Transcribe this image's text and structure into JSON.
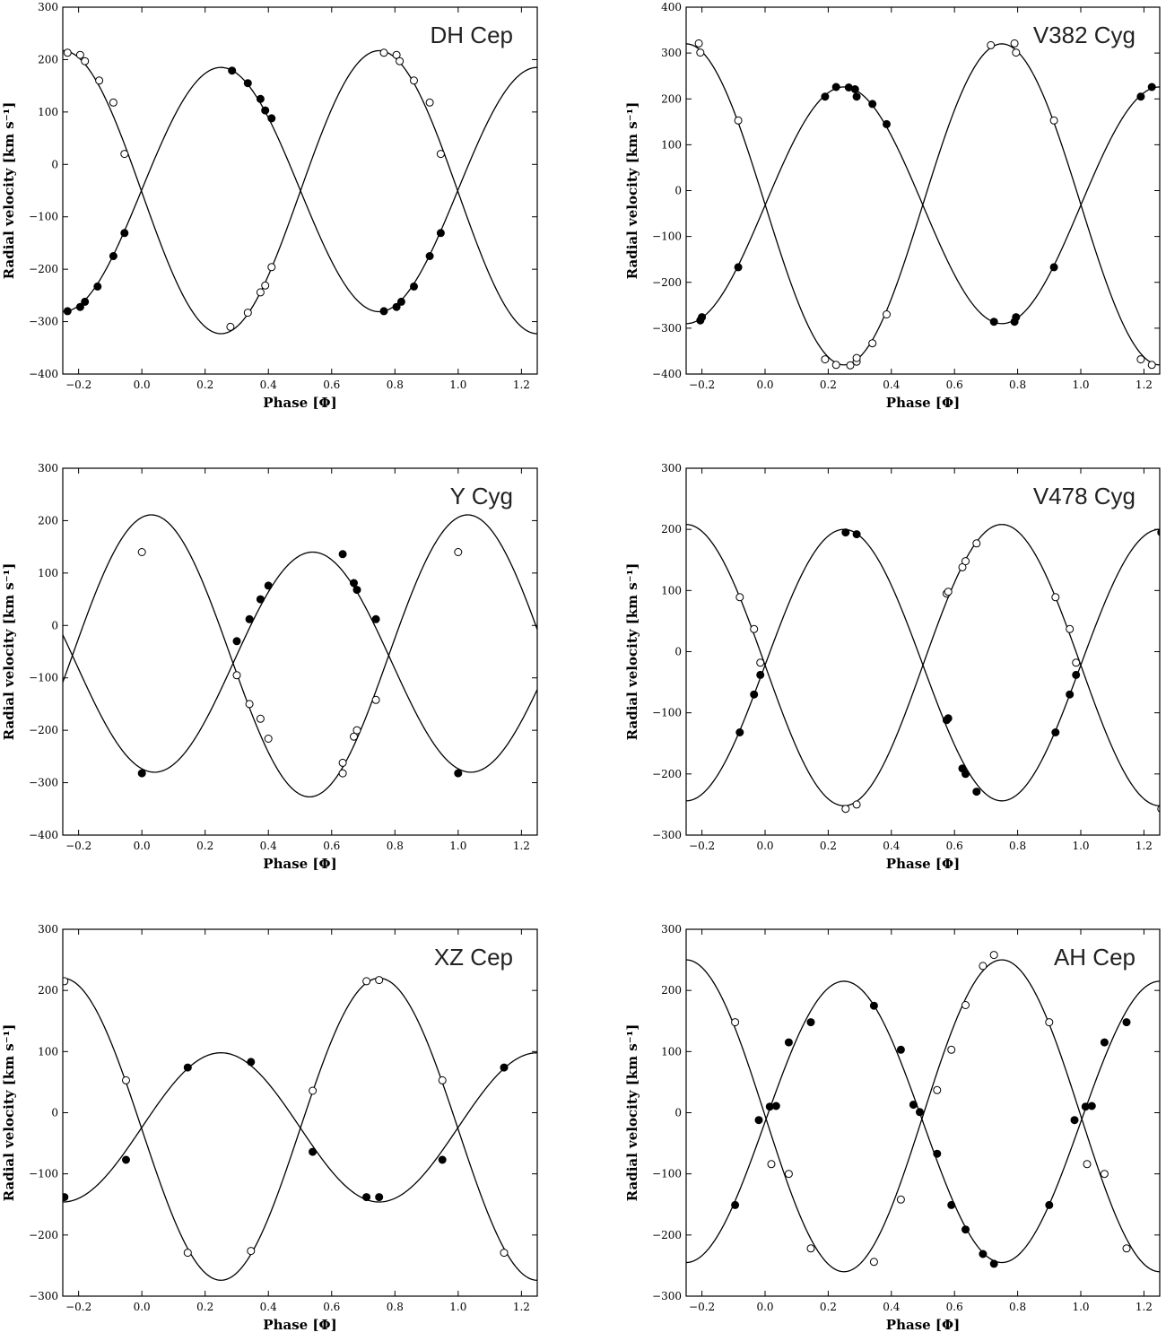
{
  "chart_data": [
    {
      "type": "scatter",
      "title": "DH Cep",
      "xlabel": "Phase [Φ]",
      "ylabel": "Radial velocity [km s⁻¹]",
      "xlim": [
        -0.25,
        1.25
      ],
      "ylim": [
        -400,
        300
      ],
      "xticks": [
        -0.2,
        0.0,
        0.2,
        0.4,
        0.6,
        0.8,
        1.0,
        1.2
      ],
      "yticks": [
        -400,
        -300,
        -200,
        -100,
        0,
        100,
        200,
        300
      ],
      "grid": false,
      "series": [
        {
          "marker": "filled",
          "curve": {
            "gamma": -48,
            "K": 233,
            "sign": 1
          },
          "points": [
            [
              -0.235,
              -280
            ],
            [
              -0.195,
              -272
            ],
            [
              -0.18,
              -262
            ],
            [
              -0.14,
              -233
            ],
            [
              -0.09,
              -175
            ],
            [
              -0.055,
              -131
            ],
            [
              0.285,
              179
            ],
            [
              0.335,
              155
            ],
            [
              0.375,
              125
            ],
            [
              0.39,
              103
            ],
            [
              0.41,
              88
            ],
            [
              0.765,
              -280
            ],
            [
              0.805,
              -272
            ],
            [
              0.82,
              -262
            ],
            [
              0.86,
              -233
            ],
            [
              0.91,
              -175
            ],
            [
              0.945,
              -131
            ]
          ]
        },
        {
          "marker": "open",
          "curve": {
            "gamma": -53,
            "K": 270,
            "sign": -1
          },
          "points": [
            [
              -0.235,
              213
            ],
            [
              -0.195,
              209
            ],
            [
              -0.18,
              197
            ],
            [
              -0.135,
              160
            ],
            [
              -0.09,
              118
            ],
            [
              -0.055,
              20
            ],
            [
              0.28,
              -310
            ],
            [
              0.335,
              -283
            ],
            [
              0.375,
              -244
            ],
            [
              0.39,
              -231
            ],
            [
              0.41,
              -196
            ],
            [
              0.765,
              213
            ],
            [
              0.805,
              209
            ],
            [
              0.815,
              197
            ],
            [
              0.86,
              160
            ],
            [
              0.91,
              118
            ],
            [
              0.945,
              20
            ]
          ]
        }
      ]
    },
    {
      "type": "scatter",
      "title": "V382 Cyg",
      "xlabel": "Phase [Φ]",
      "ylabel": "Radial velocity [km s⁻¹]",
      "xlim": [
        -0.25,
        1.25
      ],
      "ylim": [
        -400,
        400
      ],
      "xticks": [
        -0.2,
        0.0,
        0.2,
        0.4,
        0.6,
        0.8,
        1.0,
        1.2
      ],
      "yticks": [
        -400,
        -300,
        -200,
        -100,
        0,
        100,
        200,
        300,
        400
      ],
      "grid": false,
      "series": [
        {
          "marker": "filled",
          "curve": {
            "gamma": -32,
            "K": 258,
            "sign": 1
          },
          "points": [
            [
              -0.205,
              -283
            ],
            [
              -0.2,
              -276
            ],
            [
              -0.085,
              -167
            ],
            [
              0.19,
              205
            ],
            [
              0.225,
              226
            ],
            [
              0.265,
              225
            ],
            [
              0.285,
              221
            ],
            [
              0.29,
              205
            ],
            [
              0.34,
              189
            ],
            [
              0.385,
              145
            ],
            [
              0.725,
              -286
            ],
            [
              0.79,
              -286
            ],
            [
              0.795,
              -276
            ],
            [
              0.915,
              -167
            ],
            [
              1.19,
              205
            ],
            [
              1.225,
              226
            ]
          ]
        },
        {
          "marker": "open",
          "curve": {
            "gamma": -30,
            "K": 350,
            "sign": -1
          },
          "points": [
            [
              -0.21,
              321
            ],
            [
              -0.205,
              301
            ],
            [
              -0.085,
              153
            ],
            [
              0.19,
              -368
            ],
            [
              0.225,
              -380
            ],
            [
              0.27,
              -381
            ],
            [
              0.29,
              -373
            ],
            [
              0.29,
              -365
            ],
            [
              0.34,
              -333
            ],
            [
              0.385,
              -270
            ],
            [
              0.715,
              317
            ],
            [
              0.79,
              321
            ],
            [
              0.795,
              301
            ],
            [
              0.915,
              153
            ],
            [
              1.19,
              -368
            ],
            [
              1.225,
              -380
            ]
          ]
        }
      ]
    },
    {
      "type": "scatter",
      "title": "Y Cyg",
      "xlabel": "Phase [Φ]",
      "ylabel": "Radial velocity [km s⁻¹]",
      "xlim": [
        -0.25,
        1.25
      ],
      "ylim": [
        -400,
        300
      ],
      "xticks": [
        -0.2,
        0.0,
        0.2,
        0.4,
        0.6,
        0.8,
        1.0,
        1.2
      ],
      "yticks": [
        -400,
        -300,
        -200,
        -100,
        0,
        100,
        200,
        300
      ],
      "grid": false,
      "series": [
        {
          "marker": "filled",
          "curve": {
            "gamma": -70,
            "K": 210,
            "sign": 1,
            "phase_offset": 0.29
          },
          "points": [
            [
              0.0,
              -282
            ],
            [
              0.3,
              -30
            ],
            [
              0.34,
              12
            ],
            [
              0.375,
              50
            ],
            [
              0.4,
              76
            ],
            [
              0.635,
              136
            ],
            [
              0.67,
              81
            ],
            [
              0.68,
              68
            ],
            [
              0.74,
              12
            ],
            [
              1.0,
              -282
            ]
          ]
        },
        {
          "marker": "open",
          "curve": {
            "gamma": -58,
            "K": 269,
            "sign": -1,
            "phase_offset": 0.28
          },
          "points": [
            [
              0.0,
              140
            ],
            [
              0.3,
              -95
            ],
            [
              0.34,
              -150
            ],
            [
              0.375,
              -178
            ],
            [
              0.4,
              -216
            ],
            [
              0.635,
              -262
            ],
            [
              0.635,
              -282
            ],
            [
              0.67,
              -212
            ],
            [
              0.68,
              -200
            ],
            [
              0.74,
              -142
            ],
            [
              1.0,
              140
            ]
          ]
        }
      ]
    },
    {
      "type": "scatter",
      "title": "V478 Cyg",
      "xlabel": "Phase [Φ]",
      "ylabel": "Radial velocity [km s⁻¹]",
      "xlim": [
        -0.25,
        1.25
      ],
      "ylim": [
        -300,
        300
      ],
      "xticks": [
        -0.2,
        0.0,
        0.2,
        0.4,
        0.6,
        0.8,
        1.0,
        1.2
      ],
      "yticks": [
        -300,
        -200,
        -100,
        0,
        100,
        200,
        300
      ],
      "grid": false,
      "series": [
        {
          "marker": "filled",
          "curve": {
            "gamma": -22,
            "K": 222,
            "sign": 1
          },
          "points": [
            [
              -0.08,
              -132
            ],
            [
              -0.035,
              -70
            ],
            [
              -0.015,
              -38
            ],
            [
              0.255,
              195
            ],
            [
              0.29,
              192
            ],
            [
              0.575,
              -112
            ],
            [
              0.58,
              -109
            ],
            [
              0.625,
              -191
            ],
            [
              0.635,
              -200
            ],
            [
              0.67,
              -229
            ],
            [
              0.92,
              -132
            ],
            [
              0.965,
              -70
            ],
            [
              0.985,
              -38
            ],
            [
              1.255,
              195
            ]
          ]
        },
        {
          "marker": "open",
          "curve": {
            "gamma": -22,
            "K": 230,
            "sign": -1
          },
          "points": [
            [
              -0.08,
              89
            ],
            [
              -0.035,
              37
            ],
            [
              -0.015,
              -18
            ],
            [
              0.255,
              -257
            ],
            [
              0.29,
              -250
            ],
            [
              0.575,
              95
            ],
            [
              0.58,
              98
            ],
            [
              0.625,
              138
            ],
            [
              0.635,
              148
            ],
            [
              0.67,
              177
            ],
            [
              0.92,
              89
            ],
            [
              0.965,
              37
            ],
            [
              0.985,
              -18
            ],
            [
              1.255,
              -257
            ]
          ]
        }
      ]
    },
    {
      "type": "scatter",
      "title": "XZ Cep",
      "xlabel": "Phase [Φ]",
      "ylabel": "Radial velocity [km s⁻¹]",
      "xlim": [
        -0.25,
        1.25
      ],
      "ylim": [
        -300,
        300
      ],
      "xticks": [
        -0.2,
        0.0,
        0.2,
        0.4,
        0.6,
        0.8,
        1.0,
        1.2
      ],
      "yticks": [
        -300,
        -200,
        -100,
        0,
        100,
        200,
        300
      ],
      "grid": false,
      "series": [
        {
          "marker": "filled",
          "curve": {
            "gamma": -24,
            "K": 122,
            "sign": 1
          },
          "points": [
            [
              -0.245,
              -138
            ],
            [
              -0.05,
              -77
            ],
            [
              0.145,
              74
            ],
            [
              0.345,
              83
            ],
            [
              0.54,
              -64
            ],
            [
              0.71,
              -138
            ],
            [
              0.75,
              -138
            ],
            [
              0.95,
              -77
            ],
            [
              1.145,
              74
            ]
          ]
        },
        {
          "marker": "open",
          "curve": {
            "gamma": -27,
            "K": 247,
            "sign": -1
          },
          "points": [
            [
              -0.245,
              215
            ],
            [
              -0.05,
              53
            ],
            [
              0.145,
              -229
            ],
            [
              0.345,
              -226
            ],
            [
              0.54,
              36
            ],
            [
              0.71,
              215
            ],
            [
              0.75,
              217
            ],
            [
              0.95,
              53
            ],
            [
              1.145,
              -229
            ]
          ]
        }
      ]
    },
    {
      "type": "scatter",
      "title": "AH Cep",
      "xlabel": "Phase [Φ]",
      "ylabel": "Radial velocity [km s⁻¹]",
      "xlim": [
        -0.25,
        1.25
      ],
      "ylim": [
        -300,
        300
      ],
      "xticks": [
        -0.2,
        0.0,
        0.2,
        0.4,
        0.6,
        0.8,
        1.0,
        1.2
      ],
      "yticks": [
        -300,
        -200,
        -100,
        0,
        100,
        200,
        300
      ],
      "grid": false,
      "series": [
        {
          "marker": "filled",
          "curve": {
            "gamma": -15,
            "K": 230,
            "sign": 1
          },
          "points": [
            [
              -0.095,
              -151
            ],
            [
              -0.02,
              -12
            ],
            [
              0.015,
              10
            ],
            [
              0.035,
              11
            ],
            [
              0.075,
              115
            ],
            [
              0.145,
              148
            ],
            [
              0.345,
              175
            ],
            [
              0.43,
              103
            ],
            [
              0.47,
              13
            ],
            [
              0.49,
              1
            ],
            [
              0.545,
              -67
            ],
            [
              0.59,
              -151
            ],
            [
              0.635,
              -191
            ],
            [
              0.69,
              -231
            ],
            [
              0.725,
              -247
            ],
            [
              0.9,
              -151
            ],
            [
              0.98,
              -12
            ],
            [
              1.015,
              10
            ],
            [
              1.035,
              11
            ],
            [
              1.075,
              115
            ],
            [
              1.145,
              148
            ]
          ]
        },
        {
          "marker": "open",
          "curve": {
            "gamma": -5,
            "K": 255,
            "sign": -1
          },
          "points": [
            [
              -0.095,
              148
            ],
            [
              0.02,
              -84
            ],
            [
              0.075,
              -100
            ],
            [
              0.145,
              -222
            ],
            [
              0.345,
              -244
            ],
            [
              0.43,
              -142
            ],
            [
              0.545,
              37
            ],
            [
              0.59,
              103
            ],
            [
              0.635,
              176
            ],
            [
              0.69,
              240
            ],
            [
              0.725,
              258
            ],
            [
              0.9,
              148
            ],
            [
              1.02,
              -84
            ],
            [
              1.075,
              -100
            ],
            [
              1.145,
              -222
            ]
          ]
        }
      ]
    }
  ]
}
